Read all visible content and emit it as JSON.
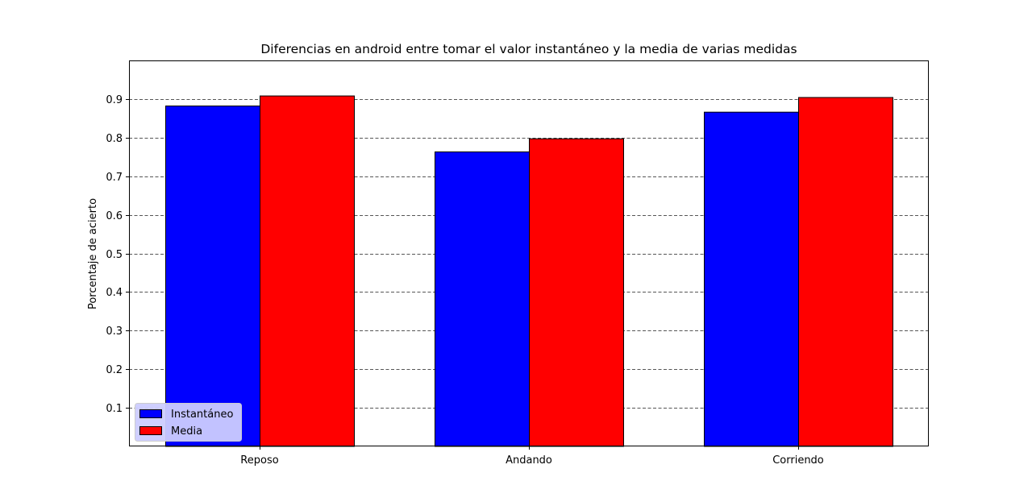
{
  "chart_data": {
    "type": "bar",
    "title": "Diferencias en android entre tomar el valor instantáneo y la media de varias medidas",
    "xlabel": "",
    "ylabel": "Porcentaje de acierto",
    "categories": [
      "Reposo",
      "Andando",
      "Corriendo"
    ],
    "series": [
      {
        "name": "Instantáneo",
        "values": [
          0.882,
          0.763,
          0.866
        ],
        "color": "#0000ff"
      },
      {
        "name": "Media",
        "values": [
          0.908,
          0.797,
          0.904
        ],
        "color": "#ff0000"
      }
    ],
    "ylim": [
      0,
      1.0
    ],
    "yticks": [
      "0.1",
      "0.2",
      "0.3",
      "0.4",
      "0.5",
      "0.6",
      "0.7",
      "0.8",
      "0.9"
    ],
    "grid": "y-dashed",
    "legend_position": "lower-left"
  }
}
